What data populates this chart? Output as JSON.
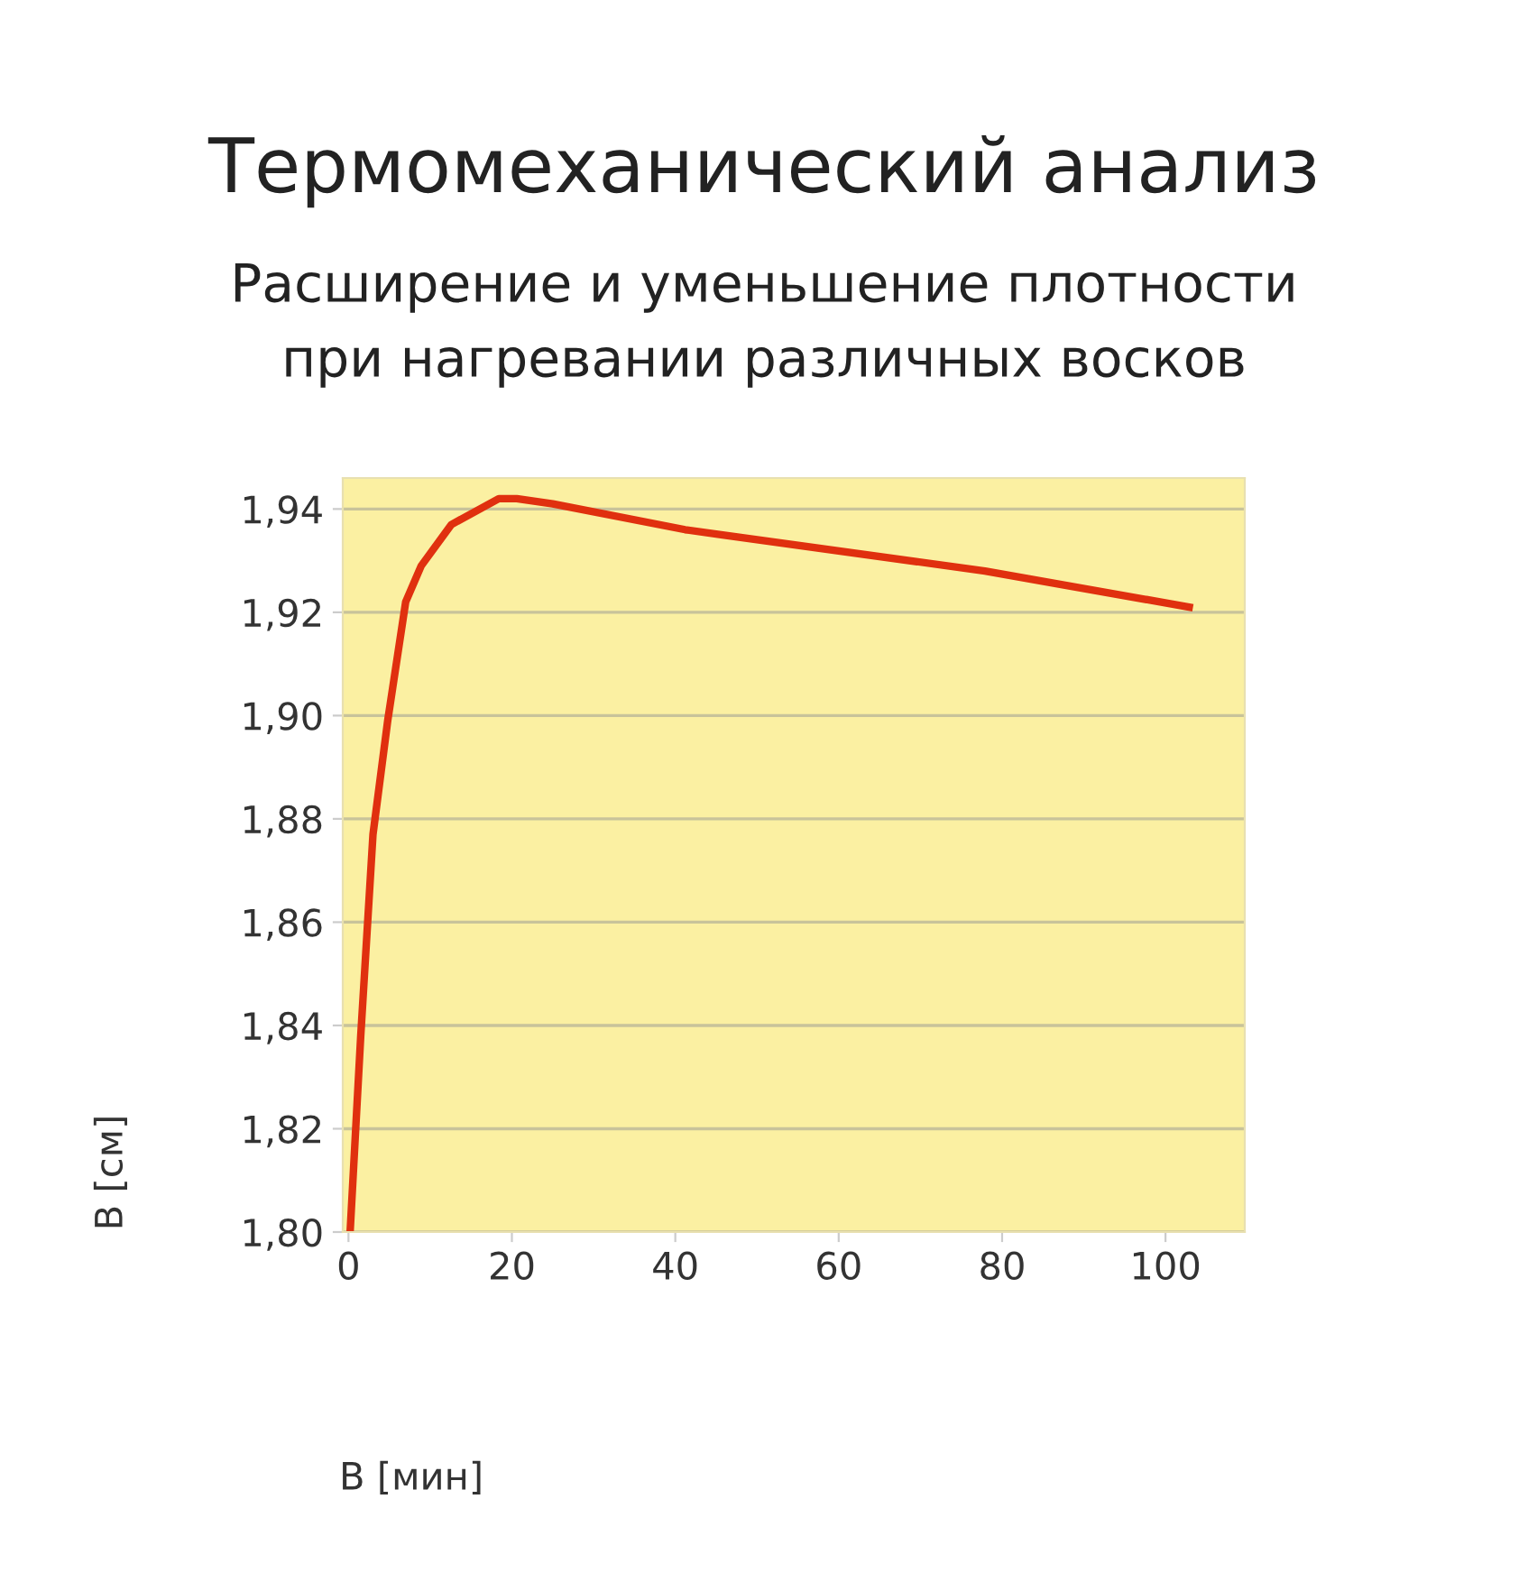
{
  "chart_data": {
    "type": "line",
    "title": "Термомеханический анализ",
    "subtitle": "Расширение и уменьшение плотности\nпри нагревании различных восков",
    "xlabel": "В [мин]",
    "ylabel": "В [см]",
    "series": [
      {
        "color": "#e0300f",
        "x": [
          0.2,
          1.5,
          3.0,
          4.8,
          7.0,
          8.9,
          12.6,
          18.4,
          20.6,
          25,
          41.2,
          45.6,
          77.9,
          102.9
        ],
        "values": [
          1.8,
          1.838,
          1.877,
          1.899,
          1.922,
          1.929,
          1.937,
          1.942,
          1.942,
          1.941,
          1.936,
          1.935,
          1.928,
          1.921
        ]
      }
    ],
    "xlim": [
      -0.7,
      109.7
    ],
    "ylim": [
      1.8,
      1.946
    ],
    "xticks": [
      0,
      20,
      40,
      60,
      80,
      100
    ],
    "yticks": [
      {
        "value": 1.8,
        "label": "1,80"
      },
      {
        "value": 1.82,
        "label": "1,82"
      },
      {
        "value": 1.84,
        "label": "1,84"
      },
      {
        "value": 1.86,
        "label": "1,86"
      },
      {
        "value": 1.88,
        "label": "1,88"
      },
      {
        "value": 1.9,
        "label": "1,90"
      },
      {
        "value": 1.92,
        "label": "1,92"
      },
      {
        "value": 1.94,
        "label": "1,94"
      }
    ],
    "grid": "y",
    "legend": false,
    "marker": "none",
    "line_style": "solid"
  }
}
